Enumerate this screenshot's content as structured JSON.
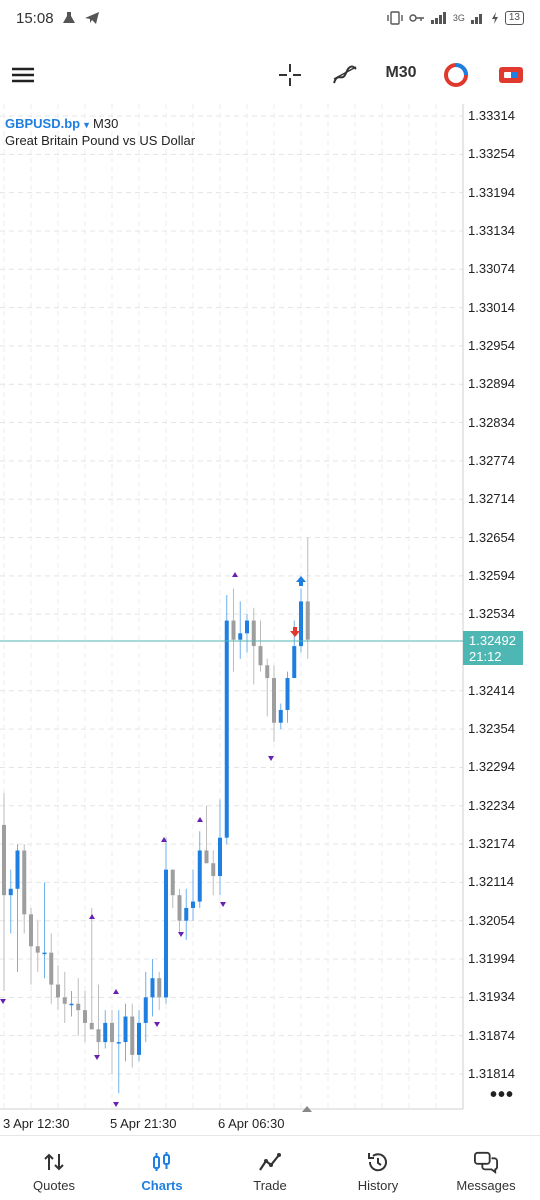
{
  "status_bar": {
    "time": "15:08",
    "network": "3G",
    "battery": "13"
  },
  "toolbar": {
    "timeframe": "M30"
  },
  "chart": {
    "symbol": "GBPUSD.bp",
    "symbol_timeframe": "M30",
    "description": "Great Britain Pound vs US Dollar",
    "price_ticks": [
      "1.33314",
      "1.33254",
      "1.33194",
      "1.33134",
      "1.33074",
      "1.33014",
      "1.32954",
      "1.32894",
      "1.32834",
      "1.32774",
      "1.32714",
      "1.32654",
      "1.32594",
      "1.32534",
      "1.32414",
      "1.32354",
      "1.32294",
      "1.32234",
      "1.32174",
      "1.32114",
      "1.32054",
      "1.31994",
      "1.31934",
      "1.31874",
      "1.31814"
    ],
    "current_price": "1.32492",
    "countdown": "21:12",
    "time_labels": [
      "3 Apr 12:30",
      "5 Apr 21:30",
      "6 Apr 06:30"
    ],
    "colors": {
      "bull": "#1e7fe0",
      "bear": "#9e9e9e",
      "bid_line": "#4fb7b3",
      "fractal": "#6a1fb5"
    }
  },
  "chart_data": {
    "type": "candlestick",
    "symbol": "GBPUSD.bp",
    "timeframe": "M30",
    "ylim": [
      1.31784,
      1.33344
    ],
    "grid": true,
    "candles": [
      {
        "o": 1.32204,
        "h": 1.32254,
        "l": 1.31944,
        "c": 1.32094
      },
      {
        "o": 1.32094,
        "h": 1.32134,
        "l": 1.32034,
        "c": 1.32104
      },
      {
        "o": 1.32104,
        "h": 1.32174,
        "l": 1.31974,
        "c": 1.32164
      },
      {
        "o": 1.32164,
        "h": 1.32174,
        "l": 1.32034,
        "c": 1.32064
      },
      {
        "o": 1.32064,
        "h": 1.32074,
        "l": 1.31954,
        "c": 1.32014
      },
      {
        "o": 1.32014,
        "h": 1.32054,
        "l": 1.31974,
        "c": 1.32004
      },
      {
        "o": 1.32004,
        "h": 1.32114,
        "l": 1.31964,
        "c": 1.32004
      },
      {
        "o": 1.32004,
        "h": 1.32034,
        "l": 1.31924,
        "c": 1.31954
      },
      {
        "o": 1.31954,
        "h": 1.31984,
        "l": 1.31914,
        "c": 1.31934
      },
      {
        "o": 1.31934,
        "h": 1.31974,
        "l": 1.31894,
        "c": 1.31924
      },
      {
        "o": 1.31924,
        "h": 1.31944,
        "l": 1.31904,
        "c": 1.31924
      },
      {
        "o": 1.31924,
        "h": 1.31964,
        "l": 1.31874,
        "c": 1.31914
      },
      {
        "o": 1.31914,
        "h": 1.31944,
        "l": 1.31864,
        "c": 1.31894
      },
      {
        "o": 1.31894,
        "h": 1.32074,
        "l": 1.31884,
        "c": 1.31884
      },
      {
        "o": 1.31884,
        "h": 1.31954,
        "l": 1.31844,
        "c": 1.31864
      },
      {
        "o": 1.31864,
        "h": 1.31914,
        "l": 1.31854,
        "c": 1.31894
      },
      {
        "o": 1.31894,
        "h": 1.31914,
        "l": 1.31814,
        "c": 1.31864
      },
      {
        "o": 1.31864,
        "h": 1.31914,
        "l": 1.31784,
        "c": 1.31864
      },
      {
        "o": 1.31864,
        "h": 1.31924,
        "l": 1.31834,
        "c": 1.31904
      },
      {
        "o": 1.31904,
        "h": 1.31924,
        "l": 1.31824,
        "c": 1.31844
      },
      {
        "o": 1.31844,
        "h": 1.31914,
        "l": 1.31834,
        "c": 1.31894
      },
      {
        "o": 1.31894,
        "h": 1.31974,
        "l": 1.31864,
        "c": 1.31934
      },
      {
        "o": 1.31934,
        "h": 1.31994,
        "l": 1.31904,
        "c": 1.31964
      },
      {
        "o": 1.31964,
        "h": 1.31974,
        "l": 1.31914,
        "c": 1.31934
      },
      {
        "o": 1.31934,
        "h": 1.32184,
        "l": 1.31924,
        "c": 1.32134
      },
      {
        "o": 1.32134,
        "h": 1.32134,
        "l": 1.32074,
        "c": 1.32094
      },
      {
        "o": 1.32094,
        "h": 1.32104,
        "l": 1.32034,
        "c": 1.32054
      },
      {
        "o": 1.32054,
        "h": 1.32104,
        "l": 1.32024,
        "c": 1.32074
      },
      {
        "o": 1.32074,
        "h": 1.32134,
        "l": 1.32054,
        "c": 1.32084
      },
      {
        "o": 1.32084,
        "h": 1.32194,
        "l": 1.32074,
        "c": 1.32164
      },
      {
        "o": 1.32164,
        "h": 1.32234,
        "l": 1.32144,
        "c": 1.32144
      },
      {
        "o": 1.32144,
        "h": 1.32164,
        "l": 1.32094,
        "c": 1.32124
      },
      {
        "o": 1.32124,
        "h": 1.32244,
        "l": 1.32094,
        "c": 1.32184
      },
      {
        "o": 1.32184,
        "h": 1.32564,
        "l": 1.32174,
        "c": 1.32524
      },
      {
        "o": 1.32524,
        "h": 1.32574,
        "l": 1.32444,
        "c": 1.32494
      },
      {
        "o": 1.32494,
        "h": 1.32554,
        "l": 1.32464,
        "c": 1.32504
      },
      {
        "o": 1.32504,
        "h": 1.32534,
        "l": 1.32474,
        "c": 1.32524
      },
      {
        "o": 1.32524,
        "h": 1.32544,
        "l": 1.32424,
        "c": 1.32484
      },
      {
        "o": 1.32484,
        "h": 1.32524,
        "l": 1.32444,
        "c": 1.32454
      },
      {
        "o": 1.32454,
        "h": 1.32464,
        "l": 1.32374,
        "c": 1.32434
      },
      {
        "o": 1.32434,
        "h": 1.32454,
        "l": 1.32334,
        "c": 1.32364
      },
      {
        "o": 1.32364,
        "h": 1.32394,
        "l": 1.32354,
        "c": 1.32384
      },
      {
        "o": 1.32384,
        "h": 1.32444,
        "l": 1.32364,
        "c": 1.32434
      },
      {
        "o": 1.32434,
        "h": 1.32524,
        "l": 1.32434,
        "c": 1.32484
      },
      {
        "o": 1.32484,
        "h": 1.32574,
        "l": 1.32474,
        "c": 1.32554
      },
      {
        "o": 1.32554,
        "h": 1.32654,
        "l": 1.32464,
        "c": 1.32494
      }
    ]
  },
  "nav": {
    "items": [
      {
        "label": "Quotes",
        "icon": "quotes-icon"
      },
      {
        "label": "Charts",
        "icon": "charts-icon"
      },
      {
        "label": "Trade",
        "icon": "trade-icon"
      },
      {
        "label": "History",
        "icon": "history-icon"
      },
      {
        "label": "Messages",
        "icon": "messages-icon"
      }
    ]
  }
}
